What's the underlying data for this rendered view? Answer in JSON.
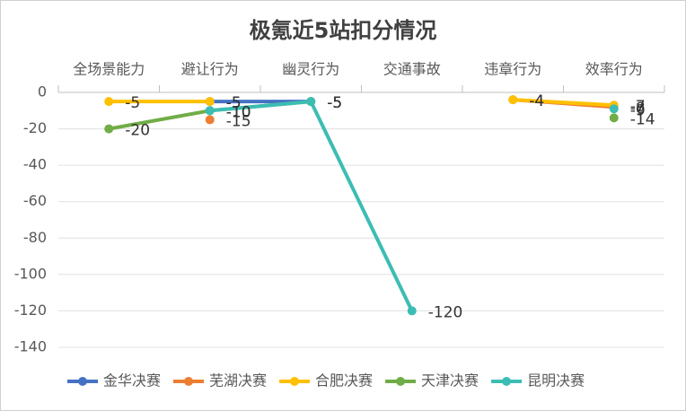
{
  "chart_data": {
    "type": "line",
    "title": "极氪近5站扣分情况",
    "categories": [
      "全场景能力",
      "避让行为",
      "幽灵行为",
      "交通事故",
      "违章行为",
      "效率行为"
    ],
    "series": [
      {
        "name": "金华决赛",
        "color": "#4472c4",
        "values": [
          null,
          -5,
          -5,
          null,
          null,
          null
        ]
      },
      {
        "name": "芜湖决赛",
        "color": "#ed7d31",
        "values": [
          null,
          -15,
          null,
          null,
          -4,
          -8
        ]
      },
      {
        "name": "合肥决赛",
        "color": "#ffc000",
        "values": [
          -5,
          -5,
          null,
          null,
          -4,
          -7
        ]
      },
      {
        "name": "天津决赛",
        "color": "#70ad47",
        "values": [
          -20,
          -10,
          -5,
          null,
          null,
          -14
        ]
      },
      {
        "name": "昆明决赛",
        "color": "#3cbdb4",
        "values": [
          null,
          -10,
          -5,
          -120,
          null,
          -9
        ]
      }
    ],
    "ylim": [
      -140,
      0
    ],
    "yticks": [
      0,
      -20,
      -40,
      -60,
      -80,
      -100,
      -120,
      -140
    ],
    "grid": true
  }
}
